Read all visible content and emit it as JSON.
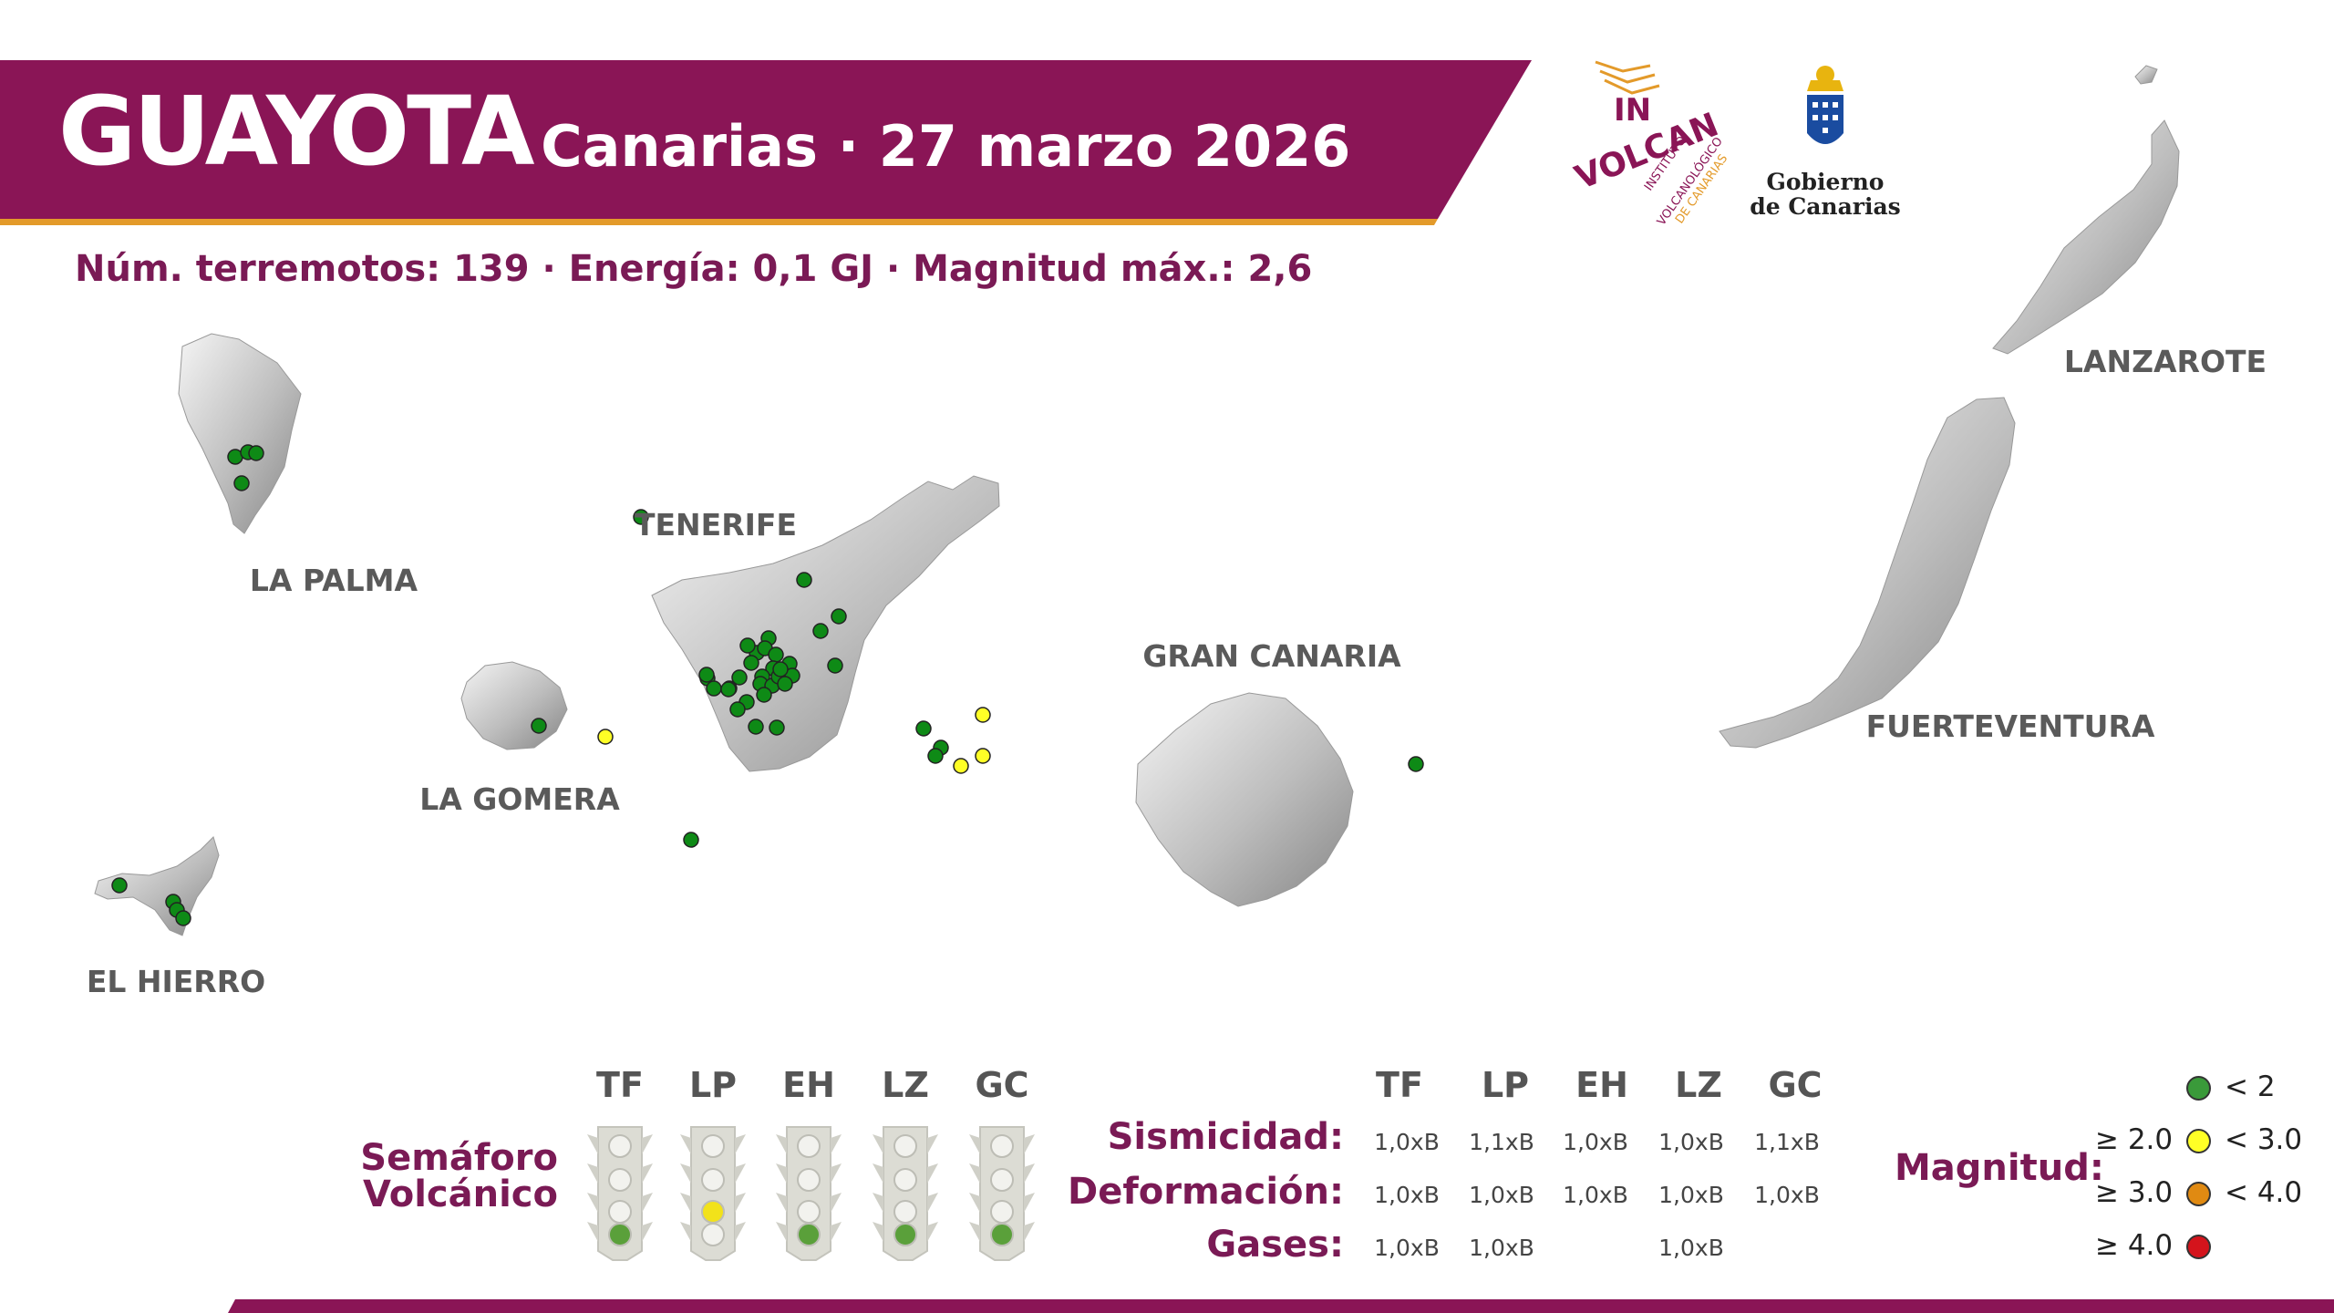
{
  "header": {
    "title": "GUAYOTA",
    "subtitle": "· Canarias · 27 marzo 2026",
    "summary": "Núm. terremotos: 139 · Energía: 0,1 GJ · Magnitud  máx.: 2,6"
  },
  "logos": {
    "involcan_text": [
      "IN",
      "VOLCAN",
      "INSTITUTO",
      "VOLCANOLÓGICO",
      "DE CANARIAS"
    ],
    "gobierno_line1": "Gobierno",
    "gobierno_line2": "de Canarias"
  },
  "colors": {
    "brand_purple": "#8a1556",
    "brand_orange": "#e39a2a",
    "mag_lt2": "#0e8a16",
    "mag_2_3": "#ffff26",
    "mag_3_4": "#e08a12",
    "mag_ge4": "#d4141c"
  },
  "map": {
    "islands": [
      {
        "id": "la-palma",
        "label": "LA PALMA"
      },
      {
        "id": "tenerife",
        "label": "TENERIFE"
      },
      {
        "id": "la-gomera",
        "label": "LA GOMERA"
      },
      {
        "id": "el-hierro",
        "label": "EL HIERRO"
      },
      {
        "id": "gran-canaria",
        "label": "GRAN CANARIA"
      },
      {
        "id": "lanzarote",
        "label": "LANZAROTE"
      },
      {
        "id": "fuerteventura",
        "label": "FUERTEVENTURA"
      }
    ]
  },
  "semaforo": {
    "title_line1": "Semáforo",
    "title_line2": "Volcánico",
    "columns": [
      "TF",
      "LP",
      "EH",
      "LZ",
      "GC"
    ],
    "states": [
      "green",
      "yellow",
      "green",
      "green",
      "green"
    ]
  },
  "indicators": {
    "columns": [
      "TF",
      "LP",
      "EH",
      "LZ",
      "GC"
    ],
    "rows": [
      {
        "label": "Sismicidad:",
        "values": [
          "1,0xB",
          "1,1xB",
          "1,0xB",
          "1,0xB",
          "1,1xB"
        ]
      },
      {
        "label": "Deformación:",
        "values": [
          "1,0xB",
          "1,0xB",
          "1,0xB",
          "1,0xB",
          "1,0xB"
        ]
      },
      {
        "label": "Gases:",
        "values": [
          "1,0xB",
          "1,0xB",
          "",
          "1,0xB",
          ""
        ]
      }
    ]
  },
  "legend": {
    "title": "Magnitud:",
    "items": [
      {
        "left": "",
        "right": "< 2"
      },
      {
        "left": "≥ 2.0",
        "right": "< 3.0"
      },
      {
        "left": "≥ 3.0",
        "right": "< 4.0"
      },
      {
        "left": "≥ 4.0",
        "right": ""
      }
    ]
  }
}
